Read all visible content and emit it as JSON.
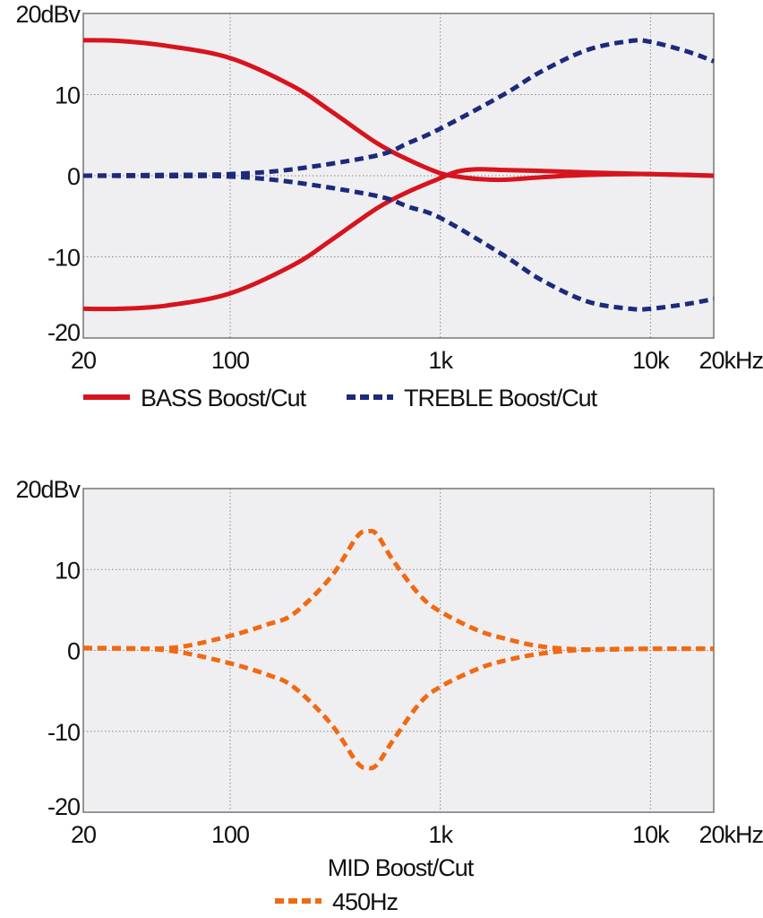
{
  "chart_data": [
    {
      "type": "line",
      "x_scale": "log",
      "xlim": [
        20,
        20000
      ],
      "ylim": [
        -20,
        20
      ],
      "x_ticks": [
        {
          "v": 20,
          "label": "20"
        },
        {
          "v": 100,
          "label": "100"
        },
        {
          "v": 1000,
          "label": "1k"
        },
        {
          "v": 10000,
          "label": "10k"
        },
        {
          "v": 20000,
          "label": "20kHz"
        }
      ],
      "y_ticks": [
        {
          "v": 20,
          "label": "20dBv"
        },
        {
          "v": 10,
          "label": "10"
        },
        {
          "v": 0,
          "label": "0"
        },
        {
          "v": -10,
          "label": "-10"
        },
        {
          "v": -20,
          "label": "-20"
        }
      ],
      "grid": true,
      "legend_position": "bottom",
      "legend": [
        {
          "label": "BASS Boost/Cut",
          "color": "#d7141e",
          "style": "solid"
        },
        {
          "label": "TREBLE Boost/Cut",
          "color": "#1c2a7c",
          "style": "dashed"
        }
      ],
      "series": [
        {
          "legend": 0,
          "color": "#d7141e",
          "style": "solid",
          "x": [
            20,
            30,
            50,
            100,
            200,
            300,
            500,
            700,
            1000,
            1200,
            1500,
            2000,
            3000,
            5000,
            10000,
            20000
          ],
          "y": [
            16.7,
            16.6,
            16,
            14.5,
            11,
            8,
            4,
            2,
            0.3,
            -0.1,
            -0.4,
            -0.5,
            -0.2,
            0.1,
            0.2,
            0
          ]
        },
        {
          "legend": 0,
          "color": "#d7141e",
          "style": "solid",
          "x": [
            20,
            30,
            50,
            100,
            200,
            300,
            500,
            700,
            1000,
            1200,
            1500,
            2000,
            3000,
            5000,
            10000,
            20000
          ],
          "y": [
            -16.4,
            -16.4,
            -16,
            -14.5,
            -11,
            -8,
            -4,
            -2,
            -0.3,
            0.5,
            0.8,
            0.7,
            0.6,
            0.4,
            0.2,
            0
          ]
        },
        {
          "legend": 1,
          "color": "#1c2a7c",
          "style": "dashed",
          "x": [
            20,
            50,
            100,
            200,
            500,
            700,
            1000,
            2000,
            3000,
            5000,
            8000,
            10000,
            15000,
            20000
          ],
          "y": [
            0,
            0.1,
            0.2,
            0.8,
            2.5,
            4,
            5.8,
            10,
            12.8,
            15.5,
            16.6,
            16.5,
            15.3,
            14.1
          ]
        },
        {
          "legend": 1,
          "color": "#1c2a7c",
          "style": "dashed",
          "x": [
            20,
            50,
            100,
            200,
            500,
            700,
            1000,
            2000,
            3000,
            5000,
            8000,
            10000,
            15000,
            20000
          ],
          "y": [
            0,
            -0.05,
            -0.1,
            -0.8,
            -2.5,
            -3.8,
            -5.2,
            -9.8,
            -12.8,
            -15.5,
            -16.4,
            -16.4,
            -15.8,
            -15.2
          ]
        }
      ]
    },
    {
      "type": "line",
      "x_scale": "log",
      "xlim": [
        20,
        20000
      ],
      "ylim": [
        -20,
        20
      ],
      "x_ticks": [
        {
          "v": 20,
          "label": "20"
        },
        {
          "v": 100,
          "label": "100"
        },
        {
          "v": 1000,
          "label": "1k"
        },
        {
          "v": 10000,
          "label": "10k"
        },
        {
          "v": 20000,
          "label": "20kHz"
        }
      ],
      "y_ticks": [
        {
          "v": 20,
          "label": "20dBv"
        },
        {
          "v": 10,
          "label": "10"
        },
        {
          "v": 0,
          "label": "0"
        },
        {
          "v": -10,
          "label": "-10"
        },
        {
          "v": -20,
          "label": "-20"
        }
      ],
      "grid": true,
      "xlabel": "MID Boost/Cut",
      "legend_position": "bottom",
      "legend": [
        {
          "label": "450Hz",
          "color": "#f06a14",
          "style": "dashed"
        }
      ],
      "series": [
        {
          "legend": 0,
          "color": "#f06a14",
          "style": "dashed",
          "x": [
            20,
            40,
            60,
            100,
            150,
            200,
            300,
            400,
            450,
            500,
            600,
            800,
            1000,
            1500,
            2000,
            3000,
            5000,
            10000,
            20000
          ],
          "y": [
            0.3,
            0.2,
            0.5,
            1.8,
            3.2,
            4.5,
            9,
            14,
            14.7,
            14.3,
            11,
            6.8,
            4.8,
            2.5,
            1.5,
            0.5,
            0.1,
            0.2,
            0.2
          ]
        },
        {
          "legend": 0,
          "color": "#f06a14",
          "style": "dashed",
          "x": [
            20,
            40,
            60,
            100,
            150,
            200,
            300,
            400,
            450,
            500,
            600,
            800,
            1000,
            1500,
            2000,
            3000,
            5000,
            10000,
            20000
          ],
          "y": [
            0.3,
            0.2,
            -0.3,
            -1.6,
            -3,
            -4.5,
            -9,
            -13.8,
            -14.5,
            -14.1,
            -11,
            -6.5,
            -4.5,
            -2.3,
            -1.3,
            -0.4,
            0.1,
            0.2,
            0.2
          ]
        }
      ]
    }
  ]
}
